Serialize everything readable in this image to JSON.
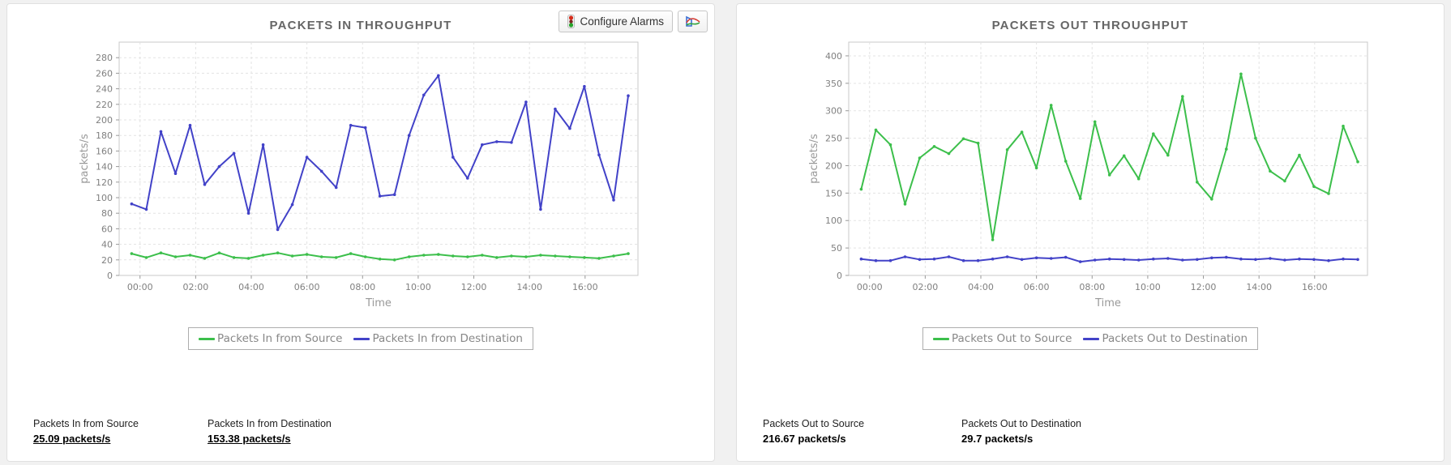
{
  "toolbar": {
    "configure_alarms_label": "Configure Alarms",
    "traffic_light_icon": "traffic-light-icon",
    "line_chart_icon": "line-chart-icon"
  },
  "colors": {
    "green_series": "#3cbf4b",
    "blue_series": "#4242c8",
    "grid": "#e3e3e3",
    "plot_border": "#c9c9c9",
    "tick_text": "#808080",
    "axis_label": "#999999",
    "title_text": "#666666"
  },
  "chart_data": [
    {
      "type": "line",
      "title": "PACKETS IN THROUGHPUT",
      "xlabel": "Time",
      "ylabel": "packets/s",
      "grid": true,
      "legend_position": "bottom",
      "ylim": [
        0,
        300
      ],
      "yticks": [
        0,
        20,
        40,
        60,
        80,
        100,
        120,
        140,
        160,
        180,
        200,
        220,
        240,
        260,
        280
      ],
      "xticks": [
        "00:00",
        "02:00",
        "04:00",
        "06:00",
        "08:00",
        "10:00",
        "12:00",
        "14:00",
        "16:00"
      ],
      "xtick_hours": [
        0,
        2,
        4,
        6,
        8,
        10,
        12,
        14,
        16
      ],
      "x_range": [
        -0.75,
        17.9
      ],
      "x_start_hour": -0.3,
      "x_step_hours": 0.525,
      "series": [
        {
          "name": "Packets In from Source",
          "color": "#3cbf4b",
          "values": [
            28,
            23,
            29,
            24,
            26,
            22,
            29,
            23,
            22,
            26,
            29,
            25,
            27,
            24,
            23,
            28,
            24,
            21,
            20,
            24,
            26,
            27,
            25,
            24,
            26,
            23,
            25,
            24,
            26,
            25,
            24,
            23,
            22,
            25,
            28
          ]
        },
        {
          "name": "Packets In from Destination",
          "color": "#4242c8",
          "values": [
            92,
            85,
            185,
            131,
            193,
            117,
            140,
            157,
            80,
            168,
            59,
            91,
            152,
            134,
            113,
            193,
            190,
            102,
            104,
            180,
            232,
            257,
            152,
            125,
            168,
            172,
            171,
            223,
            85,
            214,
            189,
            243,
            155,
            97,
            231
          ]
        }
      ],
      "summary": [
        {
          "label": "Packets In from Source",
          "value": "25.09 packets/s"
        },
        {
          "label": "Packets In from Destination",
          "value": "153.38 packets/s"
        }
      ]
    },
    {
      "type": "line",
      "title": "PACKETS OUT THROUGHPUT",
      "xlabel": "Time",
      "ylabel": "packets/s",
      "grid": true,
      "legend_position": "bottom",
      "ylim": [
        0,
        425
      ],
      "yticks": [
        0,
        50,
        100,
        150,
        200,
        250,
        300,
        350,
        400
      ],
      "xticks": [
        "00:00",
        "02:00",
        "04:00",
        "06:00",
        "08:00",
        "10:00",
        "12:00",
        "14:00",
        "16:00"
      ],
      "xtick_hours": [
        0,
        2,
        4,
        6,
        8,
        10,
        12,
        14,
        16
      ],
      "x_range": [
        -0.75,
        17.9
      ],
      "x_start_hour": -0.3,
      "x_step_hours": 0.525,
      "series": [
        {
          "name": "Packets Out to Source",
          "color": "#3cbf4b",
          "values": [
            157,
            265,
            238,
            130,
            214,
            235,
            222,
            249,
            241,
            65,
            229,
            261,
            196,
            310,
            208,
            140,
            280,
            183,
            218,
            176,
            258,
            219,
            326,
            170,
            139,
            230,
            367,
            250,
            190,
            172,
            219,
            162,
            149,
            272,
            207
          ]
        },
        {
          "name": "Packets Out to Destination",
          "color": "#4242c8",
          "values": [
            30,
            27,
            27,
            34,
            29,
            30,
            34,
            27,
            27,
            30,
            34,
            29,
            32,
            31,
            33,
            25,
            28,
            30,
            29,
            28,
            30,
            31,
            28,
            29,
            32,
            33,
            30,
            29,
            31,
            28,
            30,
            29,
            27,
            30,
            29
          ]
        }
      ],
      "summary": [
        {
          "label": "Packets Out to Source",
          "value": "216.67 packets/s"
        },
        {
          "label": "Packets Out to Destination",
          "value": "29.7 packets/s"
        }
      ]
    }
  ]
}
